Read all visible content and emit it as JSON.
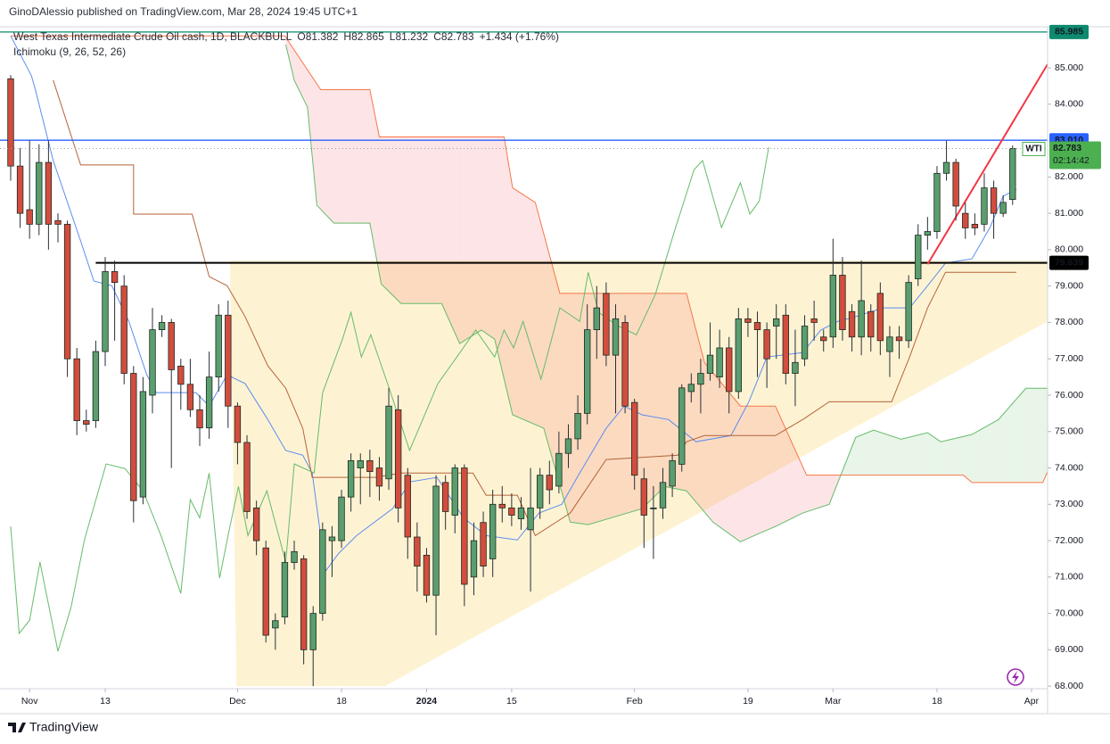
{
  "header": {
    "published": "GinoDAlessio published on TradingView.com, Mar 28, 2024 19:45 UTC+1",
    "logo": "TradingView"
  },
  "chart_data": {
    "type": "candlestick",
    "title": "West Texas Intermediate Crude Oil cash, 1D, BLACKBULL",
    "quote": [
      "O81.382",
      "H82.865",
      "L81.232",
      "C82.783",
      "+1.434 (+1.76%)"
    ],
    "indicator": "Ichimoku (9, 26, 52, 26)",
    "up_color": "#5a9e6f",
    "down_color": "#d24d3e",
    "open": [
      84.7,
      82.3,
      81.1,
      80.7,
      82.4,
      80.8,
      80.7,
      77.0,
      75.3,
      75.3,
      77.2,
      79.4,
      79.0,
      76.6,
      73.2,
      76.0,
      77.8,
      78.0,
      76.8,
      76.3,
      75.6,
      75.1,
      76.5,
      78.2,
      75.7,
      74.7,
      72.9,
      71.8,
      69.6,
      69.9,
      71.4,
      71.5,
      69.0,
      70.0,
      72.0,
      72.0,
      73.2,
      74.0,
      74.2,
      74.0,
      73.7,
      75.6,
      73.8,
      72.1,
      71.6,
      70.5,
      73.6,
      72.7,
      74.0,
      71.0,
      72.5,
      71.5,
      73.0,
      72.9,
      72.6,
      72.3,
      72.9,
      73.8,
      73.5,
      74.4,
      74.8,
      75.5,
      77.8,
      78.8,
      77.1,
      78.0,
      75.8,
      73.7,
      72.9,
      72.9,
      73.5,
      74.1,
      76.1,
      76.3,
      76.6,
      76.5,
      77.3,
      76.1,
      78.1,
      78.0,
      77.8,
      77.9,
      78.2,
      76.6,
      77.0,
      78.1,
      77.6,
      77.6,
      79.3,
      78.3,
      77.6,
      78.3,
      78.8,
      77.2,
      77.6,
      77.5,
      79.2,
      80.4,
      80.5,
      82.1,
      82.4,
      81.0,
      80.7,
      80.7,
      81.7,
      81.0,
      81.382
    ],
    "high": [
      84.8,
      82.8,
      83.0,
      82.9,
      83.0,
      81.0,
      80.8,
      77.3,
      75.6,
      77.5,
      79.8,
      79.7,
      79.3,
      76.8,
      76.5,
      78.4,
      78.2,
      78.1,
      77.0,
      77.0,
      76.0,
      77.2,
      78.5,
      78.6,
      75.8,
      74.9,
      73.1,
      72.0,
      70.0,
      71.7,
      72.0,
      71.6,
      70.2,
      72.5,
      72.4,
      73.4,
      74.4,
      74.4,
      74.5,
      74.3,
      76.2,
      76.0,
      74.0,
      72.5,
      71.8,
      73.8,
      73.8,
      74.1,
      74.1,
      72.5,
      72.8,
      73.4,
      73.5,
      73.3,
      73.2,
      74.0,
      74.0,
      74.2,
      75.0,
      75.2,
      76.0,
      78.5,
      79.0,
      79.1,
      78.5,
      78.2,
      75.9,
      74.0,
      73.5,
      74.0,
      74.4,
      76.3,
      76.6,
      77.0,
      78.0,
      77.8,
      77.6,
      78.4,
      78.4,
      78.3,
      78.0,
      78.5,
      78.5,
      77.8,
      78.2,
      78.6,
      77.8,
      80.3,
      79.8,
      78.5,
      79.7,
      78.5,
      79.1,
      77.9,
      77.9,
      79.3,
      80.7,
      80.9,
      82.3,
      83.0,
      82.5,
      81.3,
      81.0,
      82.1,
      81.9,
      81.5,
      82.865
    ],
    "low": [
      81.9,
      80.6,
      80.3,
      80.4,
      80.0,
      80.2,
      76.5,
      74.9,
      75.0,
      75.1,
      76.8,
      77.5,
      76.3,
      72.5,
      73.0,
      75.5,
      77.6,
      74.0,
      75.6,
      75.4,
      74.6,
      74.8,
      76.1,
      75.1,
      74.1,
      72.6,
      71.6,
      69.2,
      69.0,
      69.7,
      71.2,
      68.6,
      68.0,
      69.8,
      71.0,
      71.8,
      72.8,
      73.0,
      73.2,
      73.1,
      73.4,
      72.5,
      71.5,
      70.6,
      70.3,
      69.4,
      72.3,
      72.2,
      70.2,
      70.5,
      71.0,
      71.0,
      72.5,
      72.4,
      72.3,
      70.6,
      72.6,
      73.0,
      73.3,
      74.0,
      74.5,
      75.2,
      77.0,
      76.8,
      75.5,
      75.5,
      73.4,
      71.8,
      71.5,
      72.6,
      73.2,
      73.9,
      75.8,
      75.5,
      76.4,
      76.2,
      75.5,
      75.9,
      77.6,
      76.5,
      76.2,
      77.0,
      76.3,
      75.7,
      76.8,
      77.5,
      77.2,
      77.3,
      77.5,
      77.2,
      77.1,
      77.2,
      77.1,
      76.5,
      77.0,
      77.3,
      79.0,
      80.0,
      80.3,
      81.9,
      80.8,
      80.3,
      80.4,
      80.5,
      80.3,
      80.9,
      81.232
    ],
    "close": [
      82.3,
      81.0,
      80.7,
      82.4,
      80.7,
      80.7,
      77.0,
      75.3,
      75.2,
      77.2,
      79.4,
      79.1,
      76.6,
      73.1,
      76.1,
      77.8,
      78.0,
      76.7,
      76.3,
      75.6,
      75.1,
      76.5,
      78.2,
      75.7,
      74.7,
      72.8,
      72.0,
      69.4,
      69.8,
      71.4,
      71.7,
      69.0,
      70.0,
      72.3,
      72.1,
      73.2,
      74.2,
      74.2,
      73.9,
      73.5,
      75.7,
      72.9,
      72.1,
      71.3,
      70.5,
      73.5,
      72.8,
      74.0,
      70.8,
      72.0,
      71.3,
      73.0,
      72.9,
      72.7,
      72.9,
      72.9,
      73.8,
      73.4,
      74.4,
      74.8,
      75.5,
      77.8,
      78.4,
      77.1,
      78.1,
      75.7,
      73.8,
      72.7,
      72.9,
      73.6,
      74.2,
      76.2,
      76.3,
      76.6,
      77.1,
      77.3,
      76.1,
      78.1,
      78.0,
      77.8,
      77.0,
      78.1,
      76.6,
      76.9,
      77.9,
      78.0,
      77.5,
      79.3,
      77.8,
      77.6,
      78.6,
      77.6,
      77.5,
      77.6,
      77.5,
      79.1,
      80.4,
      80.5,
      82.1,
      82.4,
      81.2,
      80.6,
      80.6,
      81.7,
      81.0,
      81.3,
      82.783
    ],
    "xlim": [
      -1.13,
      109.7
    ],
    "xticks": [
      {
        "value": 2,
        "label": "Nov"
      },
      {
        "value": 10,
        "label": "13"
      },
      {
        "value": 24,
        "label": "Dec"
      },
      {
        "value": 35,
        "label": "18"
      },
      {
        "value": 44,
        "label": "2024"
      },
      {
        "value": 53,
        "label": "15"
      },
      {
        "value": 66,
        "label": "Feb"
      },
      {
        "value": 78,
        "label": "19"
      },
      {
        "value": 87,
        "label": "Mar"
      },
      {
        "value": 98,
        "label": "18"
      },
      {
        "value": 108,
        "label": "Apr"
      }
    ],
    "ylim": [
      67.93,
      86.13
    ],
    "yticks": [
      {
        "value": 68,
        "label": "68.000"
      },
      {
        "value": 69,
        "label": "69.000"
      },
      {
        "value": 70,
        "label": "70.000"
      },
      {
        "value": 71,
        "label": "71.000"
      },
      {
        "value": 72,
        "label": "72.000"
      },
      {
        "value": 73,
        "label": "73.000"
      },
      {
        "value": 74,
        "label": "74.000"
      },
      {
        "value": 75,
        "label": "75.000"
      },
      {
        "value": 76,
        "label": "76.000"
      },
      {
        "value": 77,
        "label": "77.000"
      },
      {
        "value": 78,
        "label": "78.000"
      },
      {
        "value": 79,
        "label": "79.000"
      },
      {
        "value": 80,
        "label": "80.000"
      },
      {
        "value": 81,
        "label": "81.000"
      },
      {
        "value": 82,
        "label": "82.000"
      },
      {
        "value": 84,
        "label": "84.000"
      },
      {
        "value": 85,
        "label": "85.000"
      }
    ],
    "triangle": {
      "color": "#fdf0c8",
      "x": [
        23.2,
        109.7,
        109.7,
        39.6,
        23.9
      ],
      "values": [
        79.7,
        79.7,
        78.03,
        68,
        68
      ]
    },
    "cloud_a": {
      "color": "#66bb6a",
      "x": [
        29.1,
        30,
        31.4,
        32.4,
        34.2,
        38,
        39.2,
        41.3,
        45.6,
        47.5,
        49.8,
        51.2,
        53.1,
        56.4,
        59.2,
        61.1,
        66.8,
        69.2,
        71.5,
        74.3,
        77.2,
        79.1,
        80.9,
        83.8,
        86.6,
        89.4,
        91.3,
        94.2,
        97,
        98.4,
        101.7,
        104.5,
        107.4,
        109.7
      ],
      "values": [
        85.64,
        84.66,
        83.92,
        81.22,
        80.73,
        80.73,
        79.06,
        78.52,
        78.52,
        77.42,
        77.79,
        77.54,
        75.46,
        75.09,
        72.51,
        72.44,
        72.88,
        73.49,
        73.37,
        72.51,
        71.97,
        72.19,
        72.39,
        72.76,
        73.0,
        74.84,
        75.04,
        74.79,
        74.97,
        74.72,
        74.92,
        75.33,
        76.19,
        76.19
      ]
    },
    "cloud_b": {
      "color": "#f7764a",
      "x": [
        0,
        29,
        32.8,
        38,
        39,
        52.2,
        53.1,
        55.5,
        58.1,
        71.5,
        73.4,
        77.2,
        80.9,
        84.2,
        100.8,
        101.7,
        109.2,
        109.7
      ],
      "values": [
        85.88,
        85.88,
        84.4,
        84.4,
        83.1,
        83.1,
        81.7,
        81.3,
        78.8,
        78.8,
        76.9,
        75.7,
        75.7,
        73.8,
        73.8,
        73.6,
        73.6,
        73.9
      ]
    },
    "lines": [
      {
        "color": "#5b8def",
        "x": [
          0,
          2.2,
          2.6,
          4.5,
          7.4,
          8.8,
          10.7,
          12.5,
          14.4,
          15.4,
          19.6,
          21,
          22.9,
          24.8,
          27.2,
          29.1,
          30.9,
          31.9,
          33.3,
          34.7,
          36.6,
          40.4,
          42.3,
          45.1,
          47.9,
          50.3,
          53.6,
          55.9,
          58.3,
          60.2,
          63,
          64.9,
          66.8,
          69.6,
          72.5,
          76.2,
          78.1,
          80,
          83.8,
          85.7,
          87.5,
          89.4,
          92.3,
          95.1,
          97,
          98.9,
          101.7,
          103.6,
          105,
          106.4
        ],
        "values": [
          85.88,
          84.78,
          84.41,
          82.45,
          80.24,
          79.14,
          79.01,
          78.03,
          76.56,
          76.07,
          76.07,
          75.7,
          76.56,
          76.32,
          75.33,
          74.48,
          74.35,
          73.86,
          71.16,
          71.65,
          72.14,
          72.88,
          73.62,
          73.74,
          72.63,
          72.14,
          72.02,
          72.76,
          73.0,
          73.86,
          75.09,
          75.7,
          75.46,
          75.33,
          74.72,
          74.89,
          75.82,
          77.05,
          77.17,
          77.79,
          78.03,
          78.16,
          78.4,
          78.4,
          79.01,
          79.63,
          79.75,
          80.61,
          81.47,
          81.66
        ]
      },
      {
        "color": "#b5623b",
        "x": [
          4.5,
          7.4,
          13,
          13,
          19.2,
          21,
          22.9,
          24.8,
          27.2,
          29.1,
          30.9,
          31.9,
          38.5,
          41.3,
          48.9,
          50.3,
          53.6,
          55.5,
          59.2,
          63,
          70.6,
          71.5,
          73.4,
          80.9,
          83.8,
          86.6,
          93.2,
          95.1,
          97,
          98.9,
          102.6,
          106.4
        ],
        "values": [
          84.66,
          82.33,
          82.33,
          80.98,
          80.98,
          79.26,
          79.01,
          78.16,
          76.81,
          76.19,
          75.09,
          73.74,
          73.74,
          73.86,
          73.86,
          73.25,
          73.25,
          72.14,
          72.76,
          74.23,
          74.35,
          74.72,
          74.89,
          74.89,
          75.33,
          75.82,
          75.82,
          77.05,
          78.4,
          79.38,
          79.38,
          79.38
        ]
      },
      {
        "color": "#66bb6a",
        "x": [
          0,
          0.9,
          2,
          3.1,
          5,
          6.4,
          7.8,
          10.1,
          12.1,
          14,
          15.9,
          18,
          19,
          20,
          21,
          22.1,
          23.1,
          24.1,
          25.1,
          27.1,
          29.1,
          30,
          32.1,
          33,
          35.1,
          36,
          37.1,
          38.1,
          40.2,
          42.2,
          45.2,
          47.2,
          49.2,
          51.2,
          52.2,
          53.2,
          54.2,
          56.1,
          58.1,
          60.2,
          61.1,
          62.2,
          64.2,
          66.2,
          68.2,
          70.2,
          72.3,
          73.2,
          75.2,
          77.2,
          78.2,
          79.2,
          80.2
        ],
        "values": [
          72.39,
          69.45,
          69.81,
          71.41,
          68.96,
          70.18,
          72.02,
          74.11,
          73.98,
          73.37,
          72.14,
          70.55,
          73.13,
          72.63,
          73.86,
          70.97,
          72.27,
          73.49,
          72.14,
          73.37,
          71.41,
          74.11,
          73.86,
          76.07,
          77.54,
          78.28,
          77.05,
          77.66,
          76.07,
          74.48,
          76.32,
          77.05,
          77.79,
          77.05,
          77.79,
          77.3,
          78.03,
          76.44,
          78.4,
          78.03,
          79.38,
          78.28,
          77.91,
          77.66,
          78.77,
          80.49,
          82.2,
          82.45,
          80.61,
          81.84,
          80.98,
          81.34,
          82.82
        ]
      }
    ],
    "levels": [
      {
        "value": 85.985,
        "label": "85.985",
        "color": "#0e8a6f",
        "x_start": -1.13
      },
      {
        "value": 83.01,
        "label": "83.010",
        "color": "#2962ff",
        "x_start": -1.13
      },
      {
        "value": 79.639,
        "label": "79.639",
        "color": "#000000",
        "x_start": 9
      }
    ],
    "last_price": {
      "value": 82.783,
      "label": "82.783",
      "countdown": "02:14:42",
      "tag": "WTI",
      "color": "#4caf50"
    },
    "trend_line": {
      "color": "#f23645",
      "x": [
        97,
        109.7
      ],
      "values": [
        79.6,
        85.1
      ]
    }
  }
}
